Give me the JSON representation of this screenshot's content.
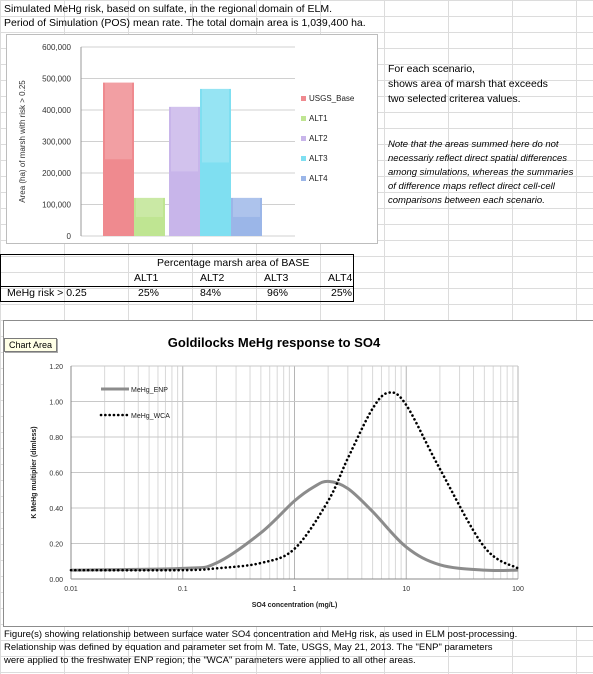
{
  "header": {
    "line1": "Simulated MeHg risk, based on sulfate, in the regional domain of ELM.",
    "line2": "Period of Simulation (POS) mean rate. The total domain area is 1,039,400 ha."
  },
  "side_notes": {
    "line1": "For each scenario,",
    "line2": "shows area of marsh that exceeds",
    "line3": "two selected criterea values.",
    "italic1": "Note that the areas summed here do not",
    "italic2": "necessariy reflect direct spatial differences",
    "italic3": "among simulations, whereas the summaries",
    "italic4": "of difference maps reflect direct cell-cell",
    "italic5": "comparisons between each scenario."
  },
  "bar_chart_data": {
    "type": "bar",
    "ylabel": "Area (ha) of marsh with risk > 0.25",
    "ylim": [
      0,
      600000
    ],
    "yticks": [
      "0",
      "100,000",
      "200,000",
      "300,000",
      "400,000",
      "500,000",
      "600,000"
    ],
    "series": [
      {
        "name": "USGS_Base",
        "value": 487000,
        "color": "#ef8a8f"
      },
      {
        "name": "ALT1",
        "value": 121000,
        "color": "#bfe592"
      },
      {
        "name": "ALT2",
        "value": 410000,
        "color": "#c8b5ea"
      },
      {
        "name": "ALT3",
        "value": 467000,
        "color": "#7fdff1"
      },
      {
        "name": "ALT4",
        "value": 121000,
        "color": "#9bb6e8"
      }
    ]
  },
  "table": {
    "title": "Percentage marsh area of BASE",
    "headers": [
      "ALT1",
      "ALT2",
      "ALT3",
      "ALT4"
    ],
    "row_label": "MeHg risk > 0.25",
    "values": [
      "25%",
      "84%",
      "96%",
      "25%"
    ]
  },
  "chart_area_tooltip": "Chart Area",
  "chart_data": {
    "type": "line",
    "title": "Goldilocks MeHg response to SO4",
    "xlabel": "SO4 concentration (mg/L)",
    "ylabel": "K MeHg multiplier (dimless)",
    "x_scale": "log",
    "xlim": [
      0.01,
      100
    ],
    "ylim": [
      0,
      1.2
    ],
    "xticks": [
      "0.01",
      "0.1",
      "1",
      "10",
      "100"
    ],
    "yticks": [
      "0.00",
      "0.20",
      "0.40",
      "0.60",
      "0.80",
      "1.00",
      "1.20"
    ],
    "legend": "top-left",
    "series": [
      {
        "name": "MeHg_ENP",
        "style": "solid",
        "color": "#8c8c8c",
        "x": [
          0.01,
          0.1,
          0.2,
          0.5,
          1,
          1.5,
          2,
          3,
          5,
          10,
          20,
          50,
          100
        ],
        "y": [
          0.05,
          0.06,
          0.09,
          0.26,
          0.44,
          0.52,
          0.55,
          0.51,
          0.38,
          0.18,
          0.08,
          0.05,
          0.05
        ]
      },
      {
        "name": "MeHg_WCA",
        "style": "dotted",
        "color": "#000000",
        "x": [
          0.01,
          0.1,
          0.2,
          0.5,
          1,
          2,
          3,
          5,
          7,
          10,
          20,
          50,
          100
        ],
        "y": [
          0.05,
          0.05,
          0.06,
          0.09,
          0.17,
          0.44,
          0.68,
          0.96,
          1.05,
          0.98,
          0.62,
          0.18,
          0.06
        ]
      }
    ]
  },
  "caption": {
    "line1": "Figure(s) showing relationship between surface water SO4 concentration and MeHg risk, as used in ELM post-processing.",
    "line2": "Relationship was defined by equation and parameter set from M. Tate, USGS, May 21, 2013.  The \"ENP\" parameters",
    "line3": "were applied to the freshwater ENP region; the \"WCA\" parameters were applied to all other areas."
  }
}
